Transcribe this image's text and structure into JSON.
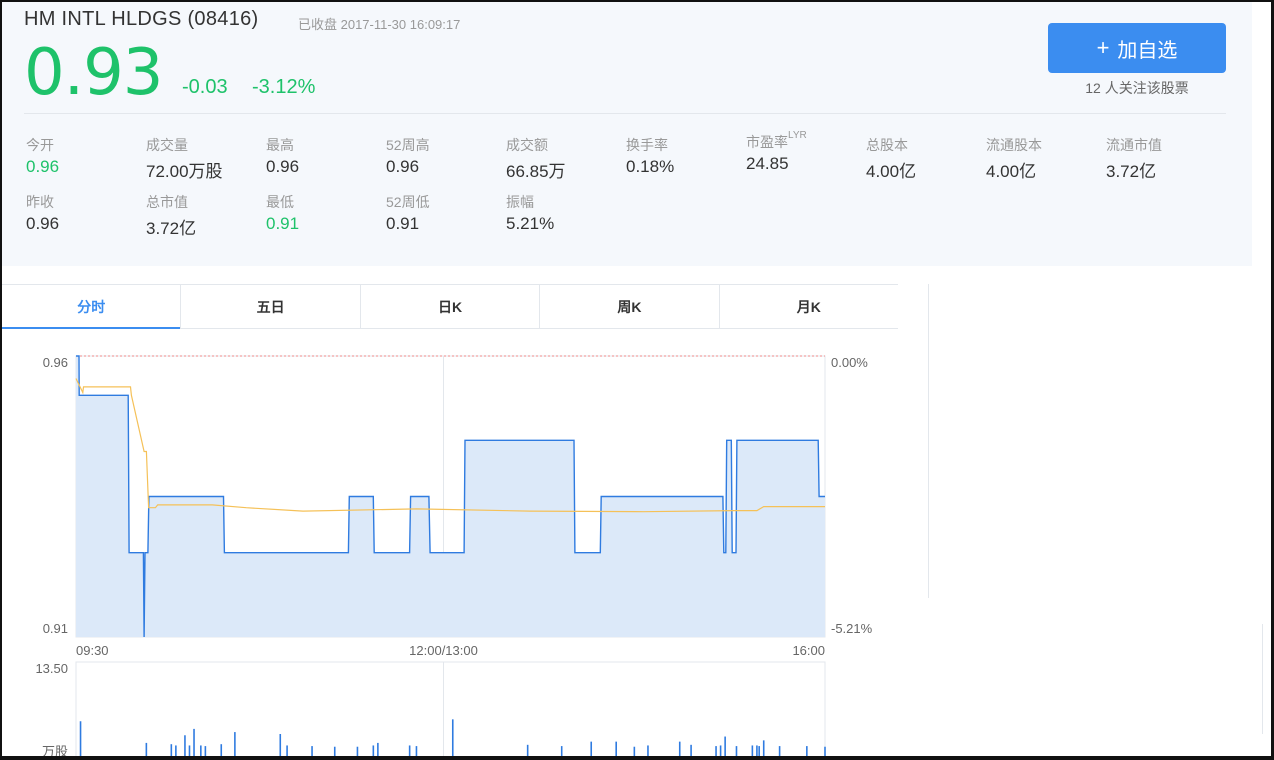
{
  "header": {
    "stock_name": "HM INTL HLDGS (08416)",
    "status": "已收盘 2017-11-30  16:09:17",
    "price": "0.93",
    "change": "-0.03",
    "change_pct": "-3.12%",
    "add_button_label": "加自选",
    "add_button_icon": "plus-icon",
    "followers": "12 人关注该股票",
    "down_color": "#1ec26a",
    "accent_color": "#3b8df0"
  },
  "stats": {
    "open": {
      "label": "今开",
      "value": "0.96"
    },
    "volume": {
      "label": "成交量",
      "value": "72.00万股"
    },
    "high": {
      "label": "最高",
      "value": "0.96"
    },
    "high52": {
      "label": "52周高",
      "value": "0.96"
    },
    "turnover": {
      "label": "成交额",
      "value": "66.85万"
    },
    "turnover_rate": {
      "label": "换手率",
      "value": "0.18%"
    },
    "pe": {
      "label": "市盈率",
      "label_sup": "LYR",
      "value": "24.85"
    },
    "total_shares": {
      "label": "总股本",
      "value": "4.00亿"
    },
    "float_shares": {
      "label": "流通股本",
      "value": "4.00亿"
    },
    "float_cap": {
      "label": "流通市值",
      "value": "3.72亿"
    },
    "prev_close": {
      "label": "昨收",
      "value": "0.96"
    },
    "market_cap": {
      "label": "总市值",
      "value": "3.72亿"
    },
    "low": {
      "label": "最低",
      "value": "0.91"
    },
    "low52": {
      "label": "52周低",
      "value": "0.91"
    },
    "amplitude": {
      "label": "振幅",
      "value": "5.21%"
    }
  },
  "tabs": [
    {
      "label": "分时",
      "active": true
    },
    {
      "label": "五日",
      "active": false
    },
    {
      "label": "日K",
      "active": false
    },
    {
      "label": "周K",
      "active": false
    },
    {
      "label": "月K",
      "active": false
    }
  ],
  "chart_data": [
    {
      "type": "line",
      "y_left_ticks": [
        "0.96",
        "0.91"
      ],
      "y_right_ticks": [
        "0.00%",
        "-5.21%"
      ],
      "x_ticks": [
        "09:30",
        "12:00/13:00",
        "16:00"
      ],
      "ylim": [
        0.91,
        0.96
      ],
      "x_domain_minutes": [
        0,
        330
      ],
      "series": [
        {
          "color": "#2f7be0",
          "fill": "#dce9f9",
          "points": [
            [
              0,
              0.96
            ],
            [
              1.3,
              0.96
            ],
            [
              1.4,
              0.953
            ],
            [
              23,
              0.953
            ],
            [
              23.4,
              0.925
            ],
            [
              29.7,
              0.925
            ],
            [
              30,
              0.91
            ],
            [
              30.4,
              0.925
            ],
            [
              31.7,
              0.925
            ],
            [
              32.1,
              0.935
            ],
            [
              65,
              0.935
            ],
            [
              65.4,
              0.925
            ],
            [
              120,
              0.925
            ],
            [
              120.4,
              0.935
            ],
            [
              131,
              0.935
            ],
            [
              131.4,
              0.925
            ],
            [
              147,
              0.925
            ],
            [
              147.4,
              0.935
            ],
            [
              155.5,
              0.935
            ],
            [
              156,
              0.925
            ],
            [
              171,
              0.925
            ],
            [
              171.4,
              0.945
            ],
            [
              219.4,
              0.945
            ],
            [
              219.8,
              0.925
            ],
            [
              231,
              0.925
            ],
            [
              231.4,
              0.935
            ],
            [
              285,
              0.935
            ],
            [
              285.4,
              0.925
            ],
            [
              286.3,
              0.925
            ],
            [
              286.7,
              0.945
            ],
            [
              288.7,
              0.945
            ],
            [
              289.1,
              0.925
            ],
            [
              290.8,
              0.925
            ],
            [
              291.2,
              0.945
            ],
            [
              327,
              0.945
            ],
            [
              327.4,
              0.935
            ],
            [
              330,
              0.935
            ]
          ]
        },
        {
          "color": "#f5c158",
          "points": [
            [
              0,
              0.956
            ],
            [
              3,
              0.9535
            ],
            [
              3.3,
              0.9545
            ],
            [
              24,
              0.9545
            ],
            [
              24.4,
              0.953
            ],
            [
              30,
              0.943
            ],
            [
              31,
              0.943
            ],
            [
              32,
              0.933
            ],
            [
              35,
              0.933
            ],
            [
              36,
              0.9335
            ],
            [
              60,
              0.9335
            ],
            [
              75,
              0.933
            ],
            [
              100,
              0.9324
            ],
            [
              150,
              0.9328
            ],
            [
              200,
              0.9324
            ],
            [
              250,
              0.9323
            ],
            [
              290,
              0.9325
            ],
            [
              300,
              0.9325
            ],
            [
              303,
              0.9332
            ],
            [
              330,
              0.9332
            ]
          ]
        }
      ]
    },
    {
      "type": "bar",
      "y_top_tick": "13.50",
      "y_unit_label": "万股",
      "ylim": [
        0,
        13.5
      ],
      "color": "#2f7be0",
      "points": [
        [
          2,
          4.2
        ],
        [
          31,
          0.8
        ],
        [
          42,
          0.6
        ],
        [
          44,
          0.4
        ],
        [
          48,
          2.0
        ],
        [
          50,
          0.4
        ],
        [
          52,
          3.0
        ],
        [
          55,
          0.4
        ],
        [
          57,
          0.3
        ],
        [
          64,
          0.6
        ],
        [
          70,
          2.5
        ],
        [
          90,
          2.2
        ],
        [
          93,
          0.4
        ],
        [
          104,
          0.3
        ],
        [
          114,
          0.2
        ],
        [
          124,
          0.2
        ],
        [
          131,
          0.4
        ],
        [
          133,
          0.8
        ],
        [
          147,
          0.4
        ],
        [
          150,
          0.3
        ],
        [
          166,
          4.5
        ],
        [
          199,
          0.5
        ],
        [
          214,
          0.3
        ],
        [
          227,
          1.0
        ],
        [
          238,
          1.0
        ],
        [
          246,
          0.2
        ],
        [
          252,
          0.4
        ],
        [
          266,
          1.0
        ],
        [
          271,
          0.5
        ],
        [
          282,
          0.3
        ],
        [
          284,
          0.4
        ],
        [
          286,
          1.8
        ],
        [
          291,
          0.3
        ],
        [
          298,
          0.4
        ],
        [
          300,
          0.4
        ],
        [
          301,
          0.3
        ],
        [
          303,
          1.2
        ],
        [
          310,
          0.3
        ],
        [
          322,
          0.3
        ],
        [
          330,
          0.2
        ]
      ]
    }
  ]
}
